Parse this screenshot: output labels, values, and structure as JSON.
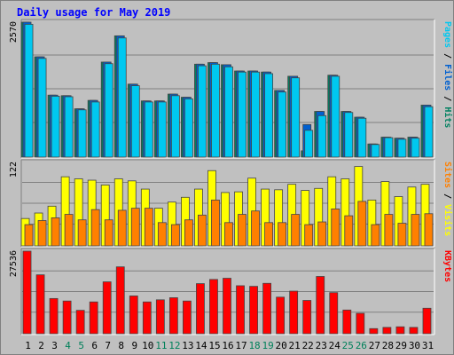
{
  "chart_data": {
    "type": "bar",
    "title": "Daily usage for May 2019",
    "categories": [
      "1",
      "2",
      "3",
      "4",
      "5",
      "6",
      "7",
      "8",
      "9",
      "10",
      "11",
      "12",
      "13",
      "14",
      "15",
      "16",
      "17",
      "18",
      "19",
      "20",
      "21",
      "22",
      "23",
      "24",
      "25",
      "26",
      "27",
      "28",
      "29",
      "30",
      "31"
    ],
    "weekend_days": [
      "4",
      "5",
      "11",
      "12",
      "18",
      "19",
      "25",
      "26"
    ],
    "panels": [
      {
        "name": "top",
        "max_label": "2570",
        "ylim": [
          0,
          2570
        ],
        "side_label_parts": [
          {
            "text": "Pages",
            "color": "#00c8f0"
          },
          {
            "text": " / ",
            "color": "#000000"
          },
          {
            "text": "Files",
            "color": "#0060d0"
          },
          {
            "text": " / ",
            "color": "#000000"
          },
          {
            "text": "Hits",
            "color": "#008060"
          }
        ],
        "series": [
          {
            "name": "Hits",
            "color": "#008060",
            "values": [
              2570,
              1910,
              1180,
              1170,
              920,
              1080,
              1810,
              2310,
              1390,
              1070,
              1070,
              1200,
              1140,
              1770,
              1800,
              1760,
              1640,
              1640,
              1620,
              1270,
              1540,
              120,
              870,
              1560,
              870,
              760,
              250,
              380,
              360,
              380,
              990
            ]
          },
          {
            "name": "Files",
            "color": "#0060d0",
            "values": [
              2570,
              1910,
              1180,
              1170,
              920,
              1080,
              1810,
              2310,
              1390,
              1070,
              1070,
              1200,
              1140,
              1770,
              1800,
              1760,
              1640,
              1640,
              1620,
              1270,
              1540,
              620,
              870,
              1560,
              870,
              760,
              250,
              380,
              360,
              380,
              990
            ]
          },
          {
            "name": "Pages",
            "color": "#00c8f0",
            "values": [
              2530,
              1880,
              1160,
              1150,
              900,
              1050,
              1780,
              2270,
              1360,
              1050,
              1050,
              1170,
              1110,
              1740,
              1770,
              1720,
              1620,
              1620,
              1590,
              1240,
              1510,
              510,
              790,
              1540,
              850,
              740,
              240,
              370,
              340,
              360,
              960
            ]
          }
        ]
      },
      {
        "name": "middle",
        "max_label": "122",
        "ylim": [
          0,
          122
        ],
        "side_label_parts": [
          {
            "text": "Sites",
            "color": "#ff8000"
          },
          {
            "text": " / ",
            "color": "#000000"
          },
          {
            "text": "Visits",
            "color": "#ffff00"
          }
        ],
        "series": [
          {
            "name": "Visits",
            "color": "#ffff00",
            "values": [
              40,
              48,
              58,
              101,
              98,
              96,
              89,
              98,
              95,
              83,
              55,
              64,
              71,
              83,
              110,
              78,
              79,
              99,
              83,
              82,
              90,
              81,
              84,
              101,
              98,
              116,
              67,
              94,
              72,
              86,
              90
            ]
          },
          {
            "name": "Sites",
            "color": "#ff8000",
            "values": [
              31,
              37,
              41,
              46,
              38,
              53,
              38,
              52,
              55,
              55,
              34,
              31,
              38,
              45,
              67,
              34,
              46,
              51,
              34,
              34,
              46,
              31,
              35,
              54,
              44,
              65,
              31,
              46,
              33,
              46,
              47
            ]
          }
        ]
      },
      {
        "name": "bottom",
        "max_label": "27536",
        "ylim": [
          0,
          27536
        ],
        "side_label_parts": [
          {
            "text": "KBytes",
            "color": "#ff0000"
          }
        ],
        "series": [
          {
            "name": "KBytes",
            "color": "#ff0000",
            "values": [
              27536,
              19640,
              11740,
              10900,
              7800,
              10600,
              17300,
              22300,
              12600,
              10600,
              11300,
              12000,
              10900,
              16700,
              18100,
              18500,
              16000,
              15800,
              16800,
              12200,
              14200,
              11100,
              19100,
              13700,
              7900,
              6800,
              1700,
              2100,
              2300,
              2100,
              8500
            ]
          }
        ]
      }
    ],
    "colors": {
      "background": "#c0c0c0",
      "plot_area": "#c0c0c0",
      "weekday_label": "#000000",
      "weekend_label": "#00805a",
      "title": "#0000ff",
      "bar_shadow": "#444444"
    }
  }
}
